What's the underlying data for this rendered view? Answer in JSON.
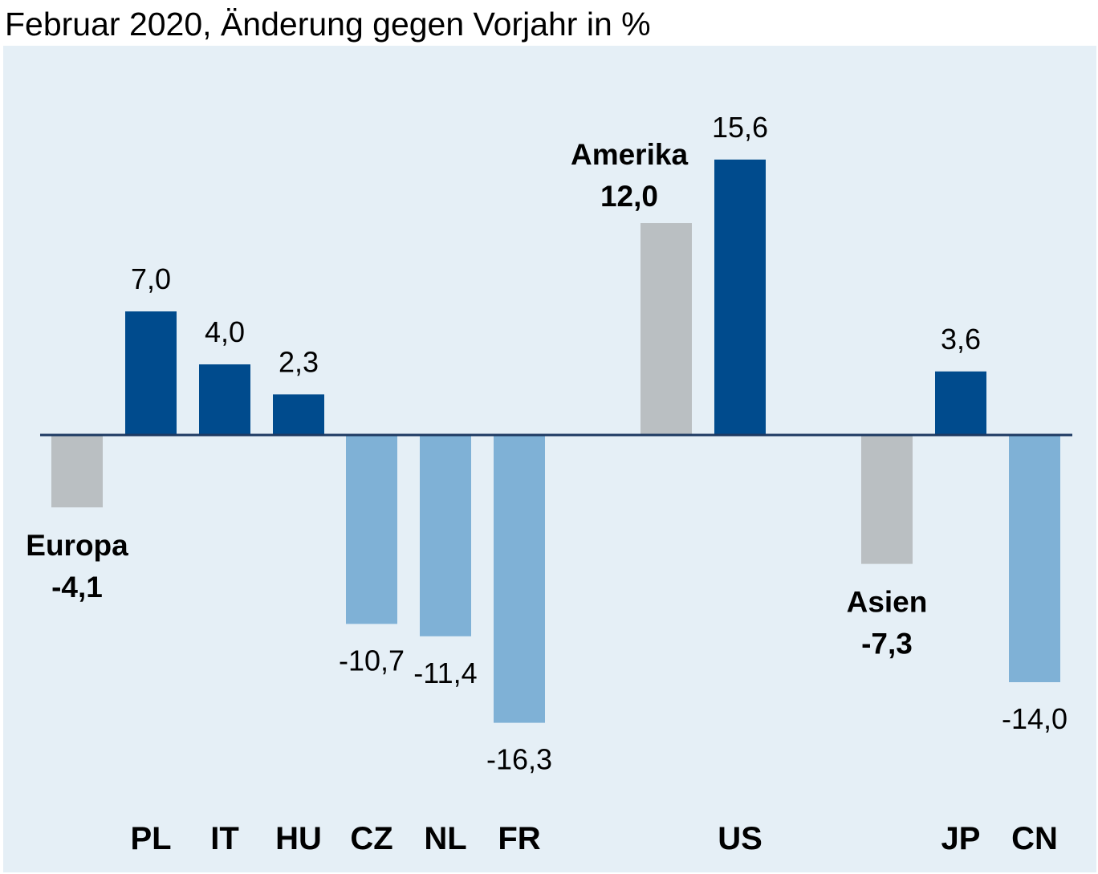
{
  "chart_data": {
    "type": "bar",
    "title": "Februar 2020, Änderung gegen Vorjahr in %",
    "categories": [
      "Europa",
      "PL",
      "IT",
      "HU",
      "CZ",
      "NL",
      "FR",
      "Amerika",
      "US",
      "Asien",
      "JP",
      "CN"
    ],
    "values": [
      -4.1,
      7.0,
      4.0,
      2.3,
      -10.7,
      -11.4,
      -16.3,
      12.0,
      15.6,
      -7.3,
      3.6,
      -14.0
    ],
    "value_labels": [
      "-4,1",
      "7,0",
      "4,0",
      "2,3",
      "-10,7",
      "-11,4",
      "-16,3",
      "12,0",
      "15,6",
      "-7,3",
      "3,6",
      "-14,0"
    ],
    "aggregate": [
      true,
      false,
      false,
      false,
      false,
      false,
      false,
      true,
      false,
      true,
      false,
      false
    ],
    "ylim": [
      -22,
      23
    ],
    "grid": false,
    "legend": "none",
    "colors": {
      "background": "#e5eff6",
      "aggregate": "#babfc2",
      "positive": "#004b8d",
      "negative": "#7fb1d6",
      "axis": "#1e3a62",
      "text": "#000000"
    }
  }
}
